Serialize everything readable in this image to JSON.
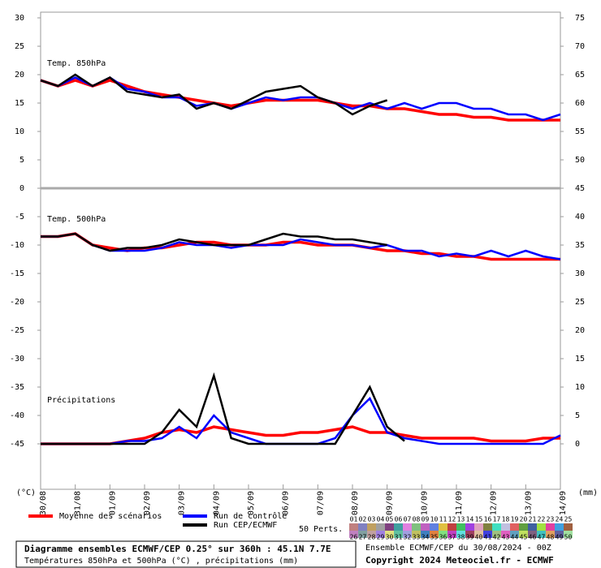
{
  "chart_data": {
    "type": "line",
    "panel_labels": [
      "Temp. 850hPa",
      "Temp. 500hPa",
      "Précipitations"
    ],
    "y_label": "(°C)",
    "y2_label": "(mm)",
    "x": [
      0,
      12,
      24,
      36,
      48,
      60,
      72,
      84,
      96,
      108,
      120,
      132,
      144,
      156,
      168,
      180,
      192,
      204,
      216,
      228,
      240,
      252,
      264,
      276,
      288,
      300,
      312,
      324,
      336,
      348,
      360
    ],
    "xlim": [
      0,
      360
    ],
    "xticks": [
      {
        "value": 0,
        "label": "30/08"
      },
      {
        "value": 24,
        "label": "31/08"
      },
      {
        "value": 48,
        "label": "01/09"
      },
      {
        "value": 72,
        "label": "02/09"
      },
      {
        "value": 96,
        "label": "03/09"
      },
      {
        "value": 120,
        "label": "04/09"
      },
      {
        "value": 144,
        "label": "05/09"
      },
      {
        "value": 168,
        "label": "06/09"
      },
      {
        "value": 192,
        "label": "07/09"
      },
      {
        "value": 216,
        "label": "08/09"
      },
      {
        "value": 240,
        "label": "09/09"
      },
      {
        "value": 264,
        "label": "10/09"
      },
      {
        "value": 288,
        "label": "11/09"
      },
      {
        "value": 312,
        "label": "12/09"
      },
      {
        "value": 336,
        "label": "13/09"
      },
      {
        "value": 360,
        "label": "14/09"
      }
    ],
    "ylim": [
      -53,
      31
    ],
    "yticks": [
      30,
      25,
      20,
      15,
      10,
      5,
      0,
      -5,
      -10,
      -15,
      -20,
      -25,
      -30,
      -35,
      -40,
      -45
    ],
    "y2lim": [
      -8,
      76
    ],
    "y2ticks": [
      75,
      70,
      65,
      60,
      55,
      50,
      45,
      40,
      35,
      30,
      25,
      20,
      15,
      10,
      5,
      0
    ],
    "series": [
      {
        "name": "Moyenne des scénarios",
        "color": "#ff0000",
        "t850": [
          19,
          18,
          19,
          18,
          19,
          18,
          17,
          16.5,
          16,
          15.5,
          15,
          14.5,
          15,
          15.5,
          15.5,
          15.5,
          15.5,
          15,
          14.5,
          14.5,
          14,
          14,
          13.5,
          13,
          13,
          12.5,
          12.5,
          12,
          12,
          12,
          12
        ],
        "t500": [
          -8.5,
          -8.5,
          -8,
          -10,
          -10.5,
          -11,
          -10.5,
          -10.5,
          -10,
          -9.5,
          -9.5,
          -10,
          -10,
          -10,
          -9.5,
          -9.5,
          -10,
          -10,
          -10,
          -10.5,
          -11,
          -11,
          -11.5,
          -11.5,
          -12,
          -12,
          -12.5,
          -12.5,
          -12.5,
          -12.5,
          -12.5
        ],
        "precip": [
          0,
          0,
          0,
          0,
          0,
          0.5,
          1,
          2,
          2.5,
          2,
          3,
          2.5,
          2,
          1.5,
          1.5,
          2,
          2,
          2.5,
          3,
          2,
          2,
          1.5,
          1,
          1,
          1,
          1,
          0.5,
          0.5,
          0.5,
          1,
          1
        ]
      },
      {
        "name": "Run de contrôle",
        "color": "#0000ff",
        "t850": [
          19,
          18,
          19.5,
          18,
          19.5,
          17.5,
          17,
          16,
          16,
          14.5,
          15,
          14,
          15,
          16,
          15.5,
          16,
          16,
          15,
          14,
          15,
          14,
          15,
          14,
          15,
          15,
          14,
          14,
          13,
          13,
          12,
          13
        ],
        "t500": [
          -8.5,
          -8.5,
          -8,
          -10,
          -11,
          -11,
          -11,
          -10.5,
          -9.5,
          -10,
          -10,
          -10.5,
          -10,
          -10,
          -10,
          -9,
          -9.5,
          -10,
          -10,
          -10.5,
          -10,
          -11,
          -11,
          -12,
          -11.5,
          -12,
          -11,
          -12,
          -11,
          -12,
          -12.5
        ],
        "precip": [
          0,
          0,
          0,
          0,
          0,
          0.5,
          0.5,
          1,
          3,
          1,
          5,
          2,
          1,
          0,
          0,
          0,
          0,
          1,
          5,
          8,
          2,
          1,
          0.5,
          0,
          0,
          0,
          0,
          0,
          0,
          0,
          1.5
        ]
      },
      {
        "name": "Run CEP/ECMWF",
        "color": "#000000",
        "t850": [
          19,
          18,
          20,
          18,
          19.5,
          17,
          16.5,
          16,
          16.5,
          14,
          15,
          14,
          15.5,
          17,
          17.5,
          18,
          16,
          15,
          13,
          14.5,
          15.5,
          null,
          null,
          null,
          null,
          null,
          null,
          null,
          null,
          null,
          null
        ],
        "t500": [
          -8.5,
          -8.5,
          -8,
          -10,
          -11,
          -10.5,
          -10.5,
          -10,
          -9,
          -9.5,
          -10,
          -10,
          -10,
          -9,
          -8,
          -8.5,
          -8.5,
          -9,
          -9,
          -9.5,
          -10,
          null,
          null,
          null,
          null,
          null,
          null,
          null,
          null,
          null,
          null
        ],
        "precip": [
          0,
          0,
          0,
          0,
          0,
          0,
          0,
          2,
          6,
          3,
          12,
          1,
          0,
          0,
          0,
          0,
          0,
          0,
          5,
          10,
          3,
          0.5,
          null,
          null,
          null,
          null,
          null,
          null,
          null,
          null,
          null
        ]
      }
    ],
    "perturbations_label": "50 Perts.",
    "perturbations": [
      {
        "label": "01",
        "color": "#c08080"
      },
      {
        "label": "02",
        "color": "#8080c0"
      },
      {
        "label": "03",
        "color": "#c0a060"
      },
      {
        "label": "04",
        "color": "#a0a0a0"
      },
      {
        "label": "05",
        "color": "#804080"
      },
      {
        "label": "06",
        "color": "#40a0a0"
      },
      {
        "label": "07",
        "color": "#e080e0"
      },
      {
        "label": "08",
        "color": "#80c080"
      },
      {
        "label": "09",
        "color": "#c060c0"
      },
      {
        "label": "10",
        "color": "#6080e0"
      },
      {
        "label": "11",
        "color": "#e0c040"
      },
      {
        "label": "12",
        "color": "#c04040"
      },
      {
        "label": "13",
        "color": "#40c060"
      },
      {
        "label": "14",
        "color": "#a040e0"
      },
      {
        "label": "15",
        "color": "#e0a0c0"
      },
      {
        "label": "16",
        "color": "#808040"
      },
      {
        "label": "17",
        "color": "#40e0c0"
      },
      {
        "label": "18",
        "color": "#c0c0e0"
      },
      {
        "label": "19",
        "color": "#e06060"
      },
      {
        "label": "20",
        "color": "#60a040"
      },
      {
        "label": "21",
        "color": "#4060a0"
      },
      {
        "label": "22",
        "color": "#a0e040"
      },
      {
        "label": "23",
        "color": "#e040a0"
      },
      {
        "label": "24",
        "color": "#40a0e0"
      },
      {
        "label": "25",
        "color": "#a06040"
      },
      {
        "label": "26",
        "color": "#c080c0"
      },
      {
        "label": "27",
        "color": "#80a0a0"
      },
      {
        "label": "28",
        "color": "#c0a0a0"
      },
      {
        "label": "29",
        "color": "#a080e0"
      },
      {
        "label": "30",
        "color": "#e0e080"
      },
      {
        "label": "31",
        "color": "#60c0a0"
      },
      {
        "label": "32",
        "color": "#a0a0e0"
      },
      {
        "label": "33",
        "color": "#c0c060"
      },
      {
        "label": "34",
        "color": "#4080c0"
      },
      {
        "label": "35",
        "color": "#e08040"
      },
      {
        "label": "36",
        "color": "#80e080"
      },
      {
        "label": "37",
        "color": "#c040c0"
      },
      {
        "label": "38",
        "color": "#60e0e0"
      },
      {
        "label": "39",
        "color": "#a04060"
      },
      {
        "label": "40",
        "color": "#e0c0a0"
      },
      {
        "label": "41",
        "color": "#4040e0"
      },
      {
        "label": "42",
        "color": "#a0c080"
      },
      {
        "label": "43",
        "color": "#e060c0"
      },
      {
        "label": "44",
        "color": "#60a0c0"
      },
      {
        "label": "45",
        "color": "#c0e060"
      },
      {
        "label": "46",
        "color": "#806080"
      },
      {
        "label": "47",
        "color": "#40c0c0"
      },
      {
        "label": "48",
        "color": "#e0a060"
      },
      {
        "label": "49",
        "color": "#6060a0"
      },
      {
        "label": "50",
        "color": "#a0e0a0"
      }
    ],
    "footer": {
      "title": "Diagramme ensembles ECMWF/CEP 0.25° sur 360h : 45.1N 7.7E",
      "subtitle": "Températures 850hPa et 500hPa (°C) , précipitations (mm)",
      "run": "Ensemble ECMWF/CEP du 30/08/2024 - 00Z",
      "copyright": "Copyright 2024 Meteociel.fr - ECMWF"
    }
  }
}
